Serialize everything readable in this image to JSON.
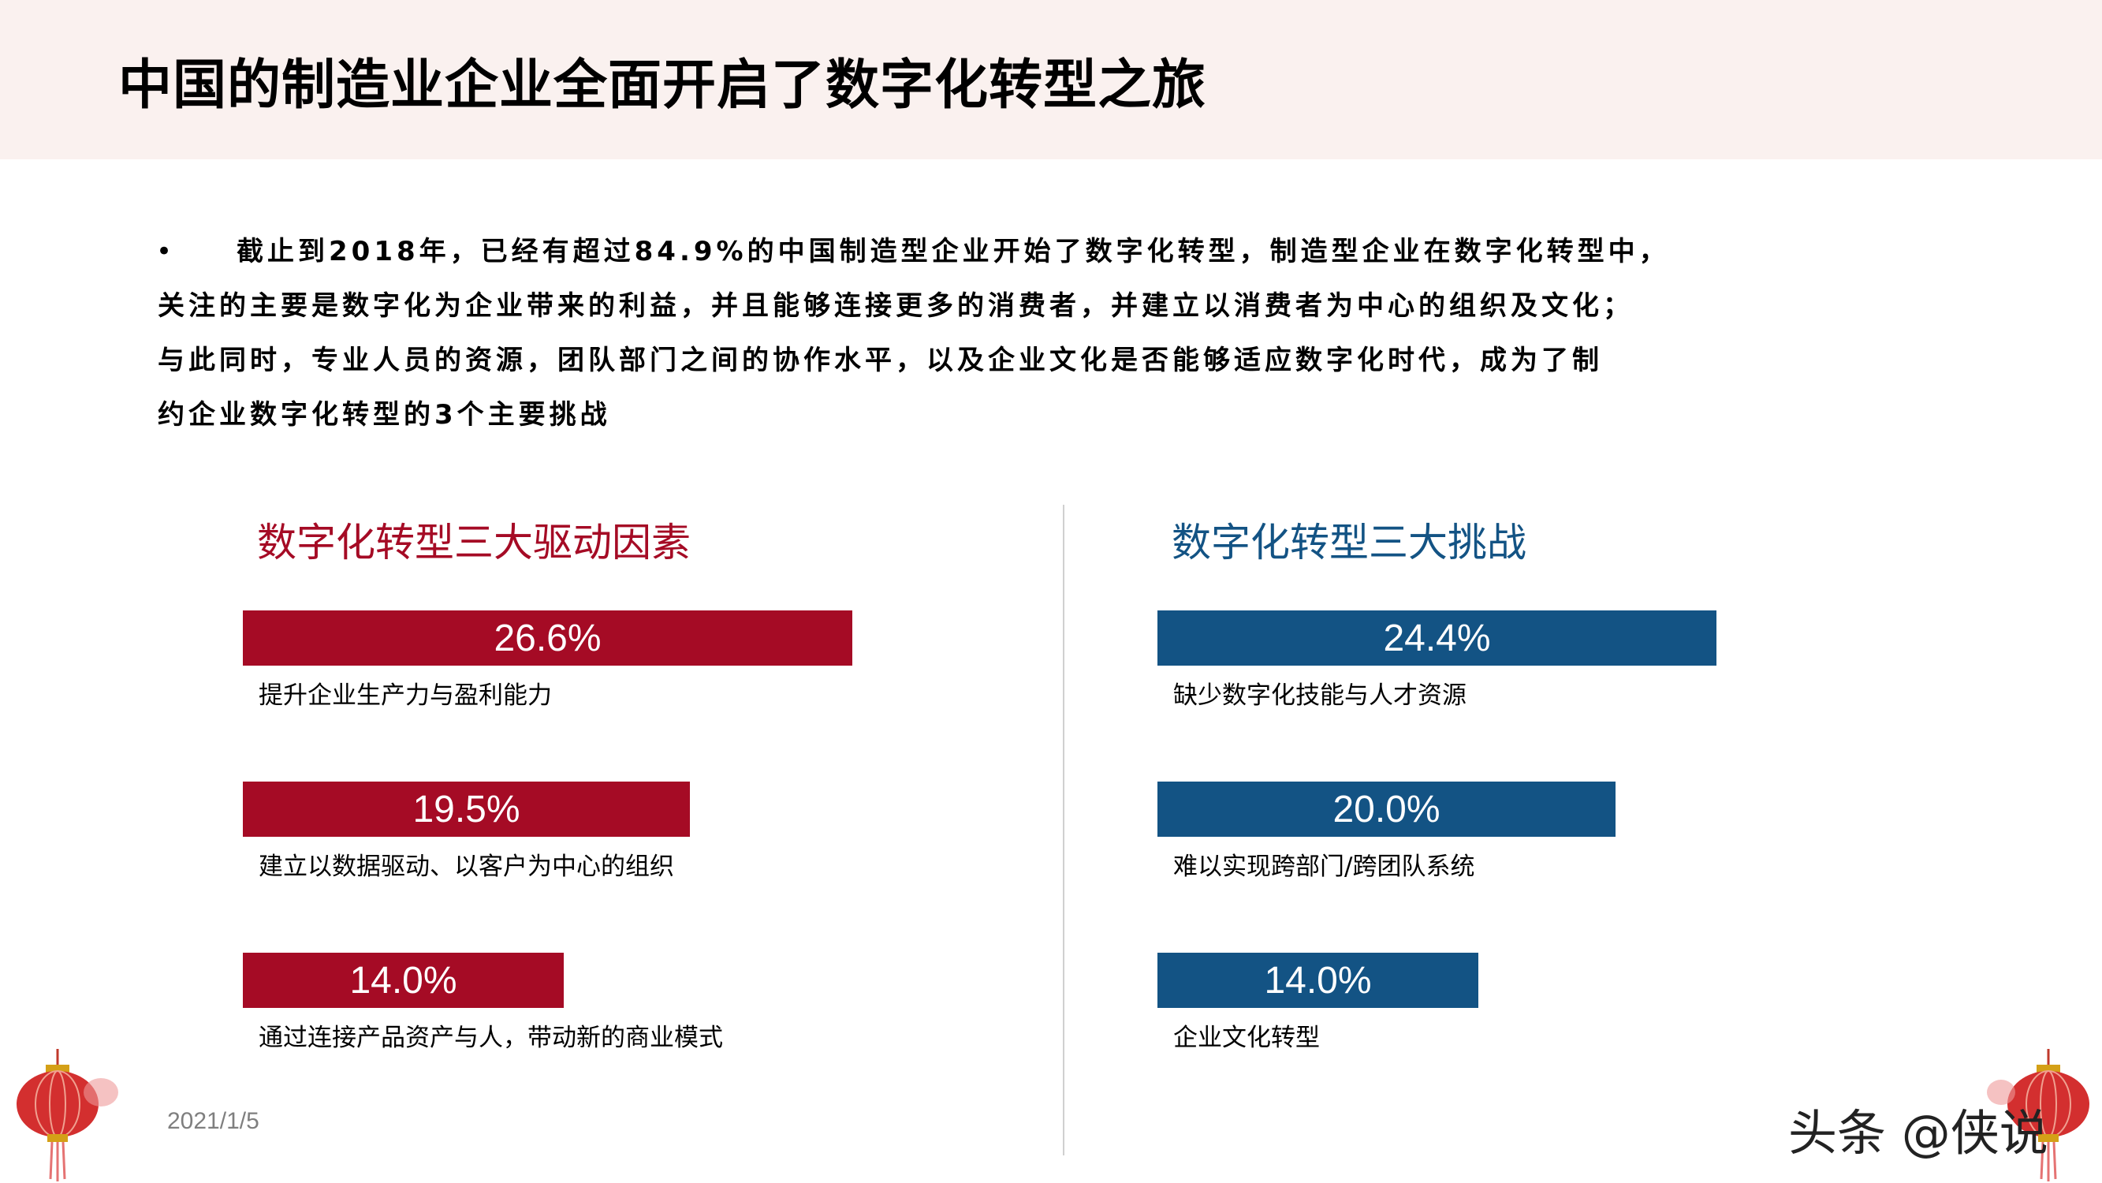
{
  "header": {
    "title": "中国的制造业企业全面开启了数字化转型之旅"
  },
  "intro": {
    "bullet": "•",
    "lines": [
      "截止到2018年，已经有超过84.9%的中国制造型企业开始了数字化转型，制造型企业在数字化转型中，",
      "关注的主要是数字化为企业带来的利益，并且能够连接更多的消费者，并建立以消费者为中心的组织及文化；",
      "与此同时，专业人员的资源，团队部门之间的协作水平，以及企业文化是否能够适应数字化时代，成为了制",
      "约企业数字化转型的3个主要挑战"
    ]
  },
  "footer": {
    "date": "2021/1/5",
    "watermark": "头条 @侠说"
  },
  "colors": {
    "drivers": "#a50b25",
    "challenges": "#135384",
    "title_band": "#faf1ef"
  },
  "chart_data": [
    {
      "type": "bar",
      "title": "数字化转型三大驱动因素",
      "color": "#a50b25",
      "categories": [
        "提升企业生产力与盈利能力",
        "建立以数据驱动、以客户为中心的组织",
        "通过连接产品资产与人，带动新的商业模式"
      ],
      "values": [
        26.6,
        19.5,
        14.0
      ],
      "labels": [
        "26.6%",
        "19.5%",
        "14.0%"
      ]
    },
    {
      "type": "bar",
      "title": "数字化转型三大挑战",
      "color": "#135384",
      "categories": [
        "缺少数字化技能与人才资源",
        "难以实现跨部门/跨团队系统",
        "企业文化转型"
      ],
      "values": [
        24.4,
        20.0,
        14.0
      ],
      "labels": [
        "24.4%",
        "20.0%",
        "14.0%"
      ]
    }
  ]
}
